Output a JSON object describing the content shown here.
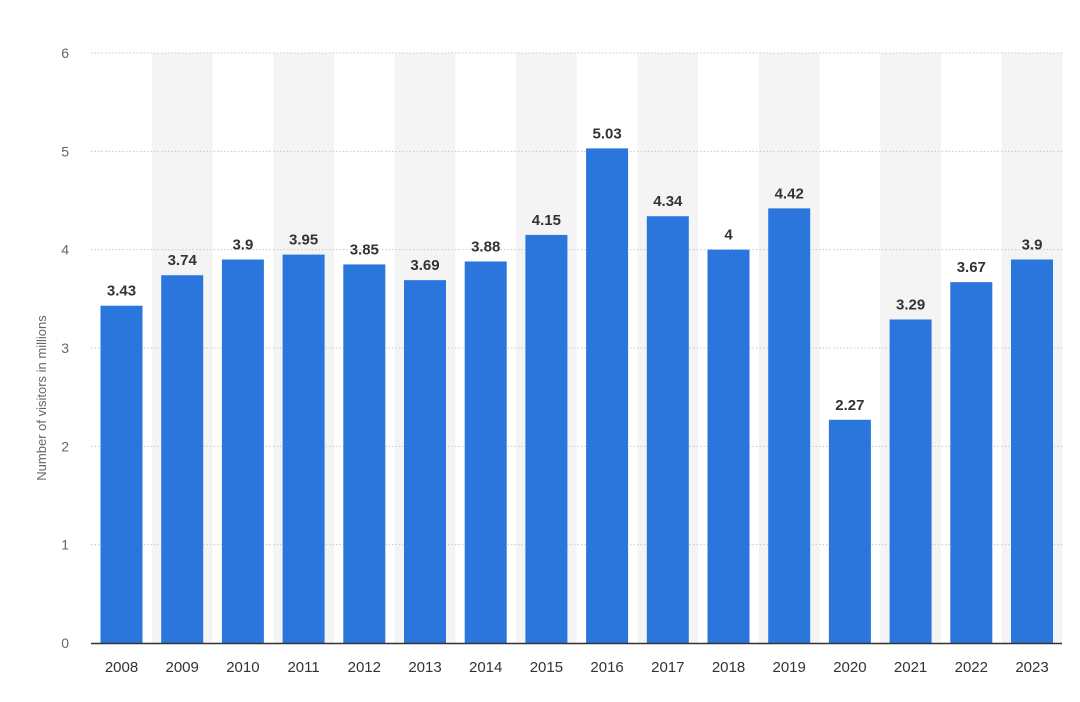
{
  "chart_data": {
    "type": "bar",
    "title": "",
    "xlabel": "",
    "ylabel": "Number of visitors in millions",
    "categories": [
      "2008",
      "2009",
      "2010",
      "2011",
      "2012",
      "2013",
      "2014",
      "2015",
      "2016",
      "2017",
      "2018",
      "2019",
      "2020",
      "2021",
      "2022",
      "2023"
    ],
    "values": [
      3.43,
      3.74,
      3.9,
      3.95,
      3.85,
      3.69,
      3.88,
      4.15,
      5.03,
      4.34,
      4,
      4.42,
      2.27,
      3.29,
      3.67,
      3.9
    ],
    "data_labels": [
      "3.43",
      "3.74",
      "3.9",
      "3.95",
      "3.85",
      "3.69",
      "3.88",
      "4.15",
      "5.03",
      "4.34",
      "4",
      "4.42",
      "2.27",
      "3.29",
      "3.67",
      "3.9"
    ],
    "ylim": [
      0,
      6
    ],
    "yticks": [
      0,
      1,
      2,
      3,
      4,
      5,
      6
    ],
    "grid": true,
    "alternating_column_shading": true,
    "colors": {
      "bar": "#2a76dd",
      "grid": "#c8c8c8",
      "band": "#f4f4f4",
      "axis": "#333333"
    }
  }
}
